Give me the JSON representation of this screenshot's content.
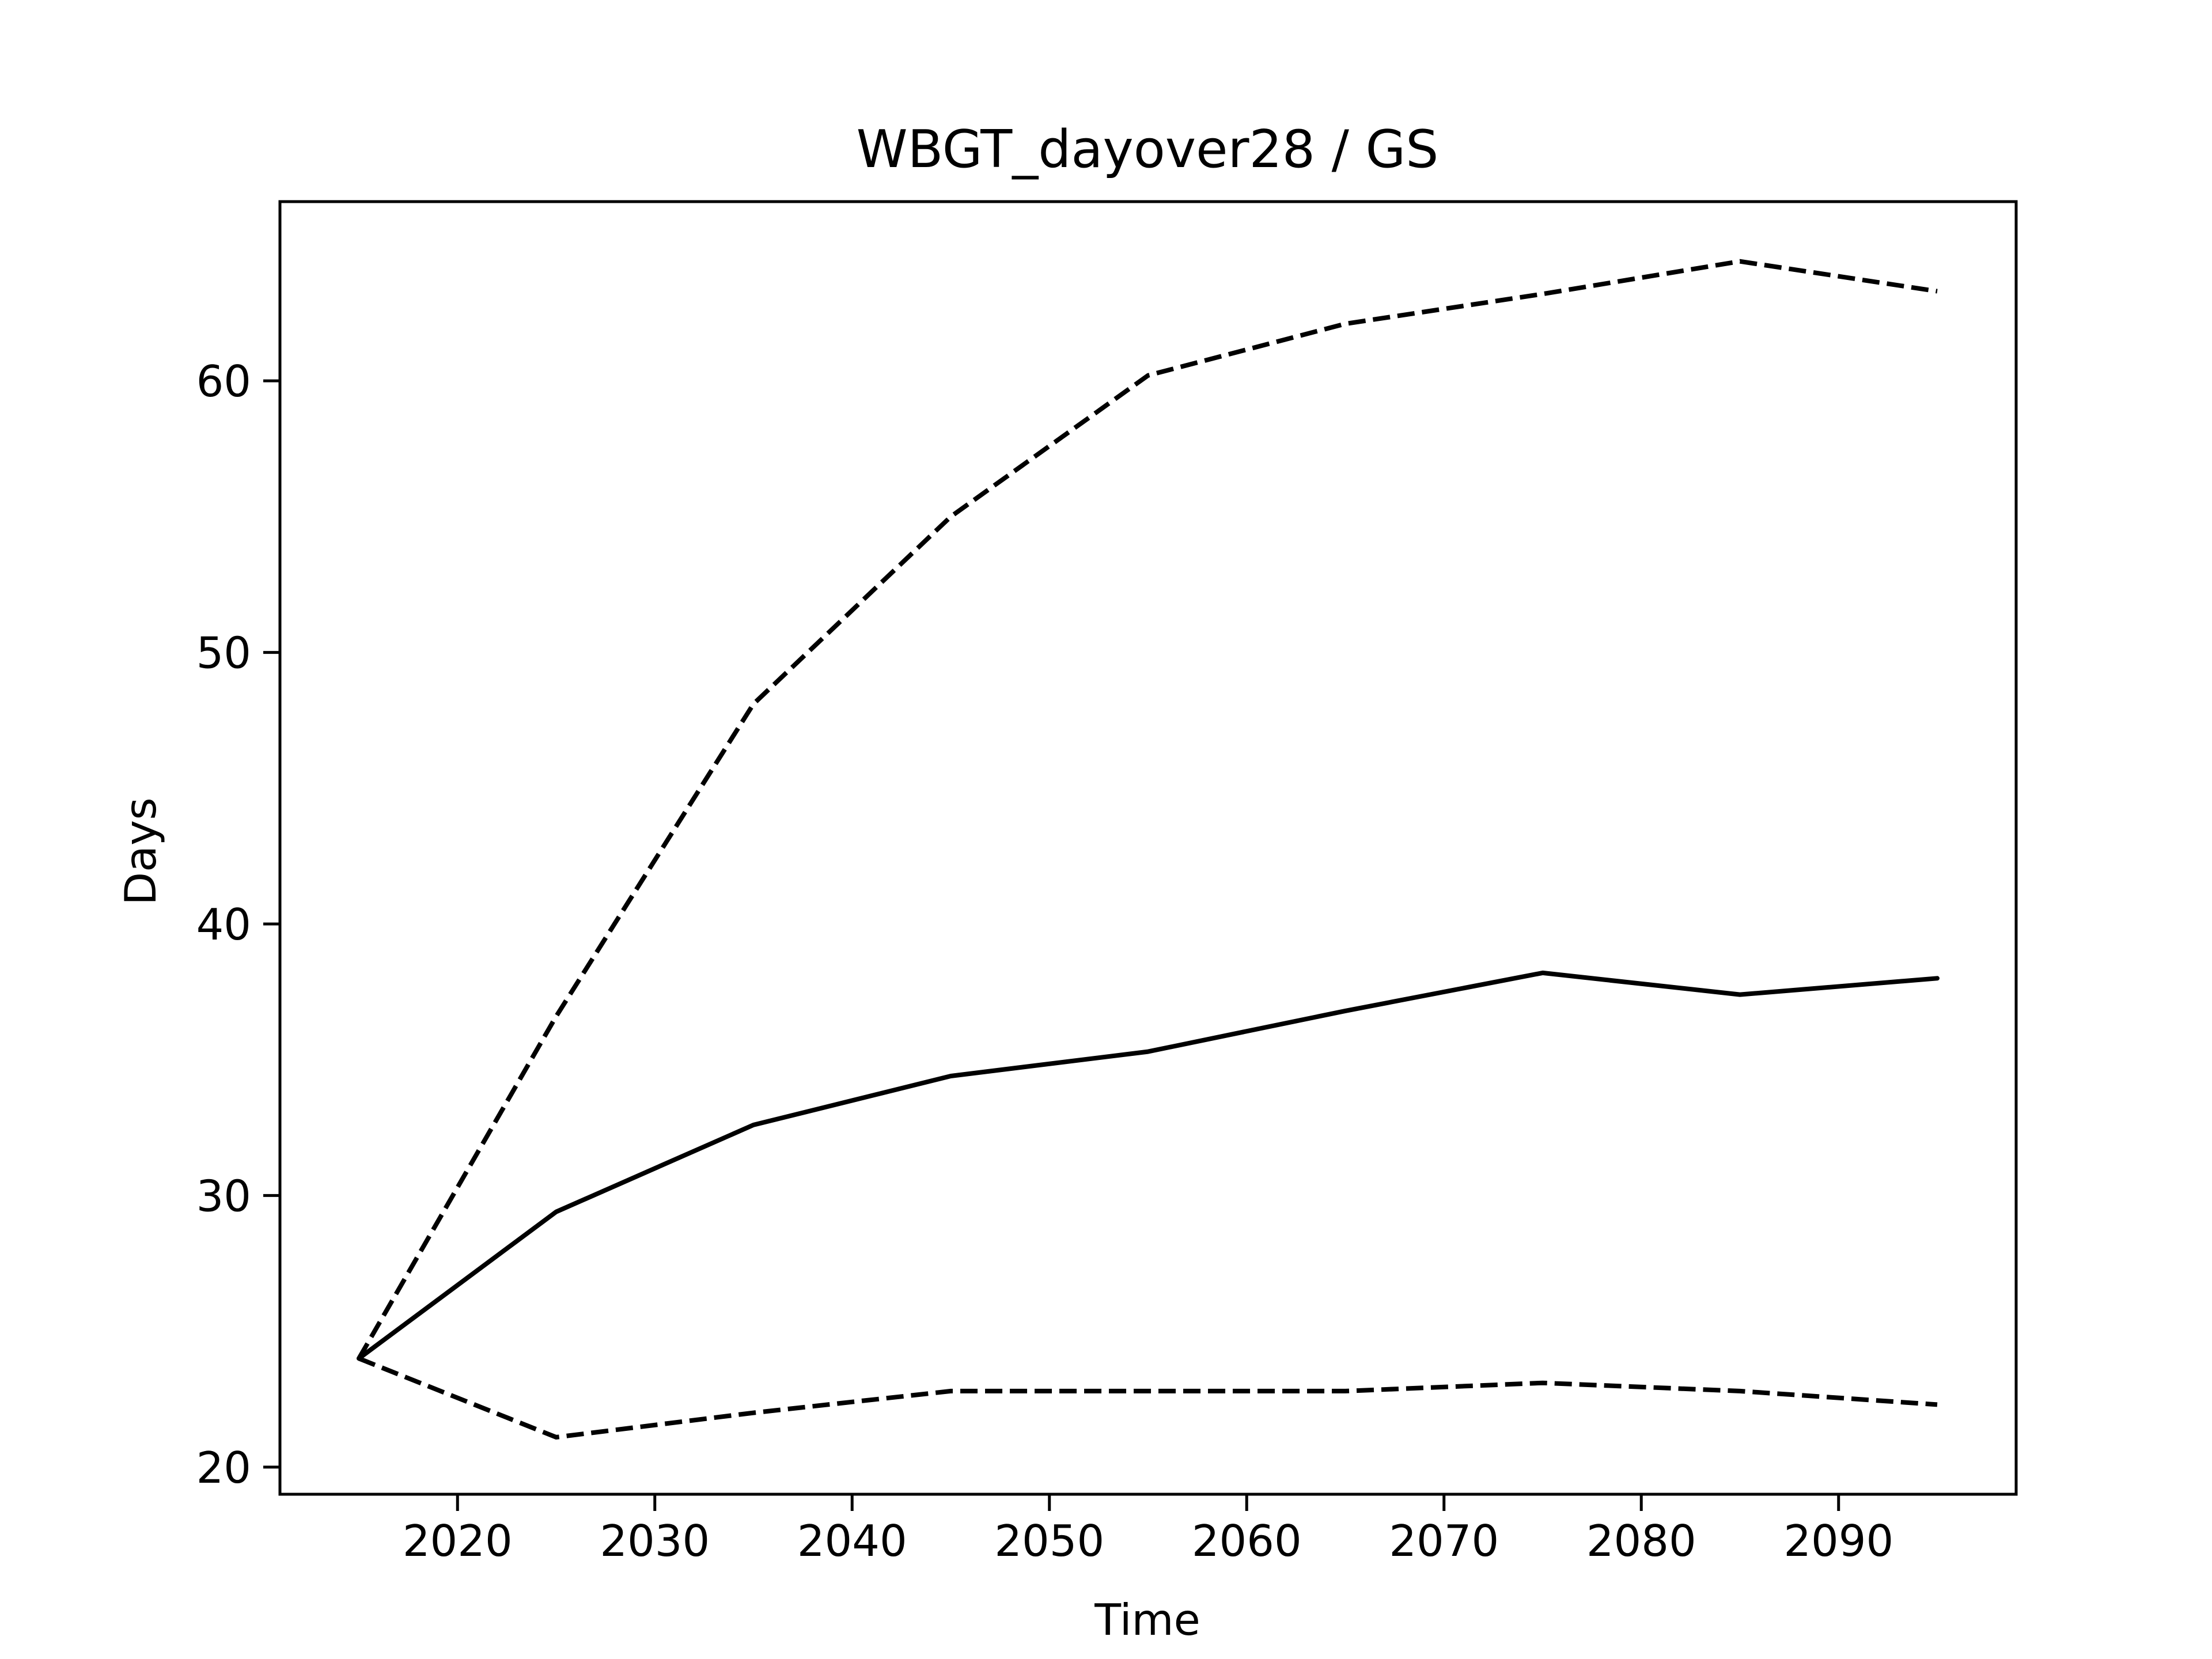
{
  "chart_data": {
    "type": "line",
    "title": "WBGT_dayover28 / GS",
    "xlabel": "Time",
    "ylabel": "Days",
    "x": [
      2015,
      2025,
      2035,
      2045,
      2055,
      2065,
      2075,
      2085,
      2095
    ],
    "series": [
      {
        "style": "solid",
        "values": [
          24.0,
          29.4,
          32.6,
          34.4,
          35.3,
          36.8,
          38.2,
          37.4,
          38.0
        ]
      },
      {
        "style": "dashed",
        "values": [
          24.0,
          36.6,
          48.1,
          55.0,
          60.2,
          62.1,
          63.2,
          64.4,
          63.3
        ]
      },
      {
        "style": "dashed",
        "values": [
          24.0,
          21.1,
          22.0,
          22.8,
          22.8,
          22.8,
          23.1,
          22.8,
          22.3
        ]
      }
    ],
    "xlim": [
      2011,
      2099
    ],
    "ylim": [
      19.0,
      66.6
    ],
    "xticks": [
      "2020",
      "2030",
      "2040",
      "2050",
      "2060",
      "2070",
      "2080",
      "2090"
    ],
    "yticks": [
      "20",
      "30",
      "40",
      "50",
      "60"
    ],
    "grid": false,
    "line_color": "#000000"
  }
}
